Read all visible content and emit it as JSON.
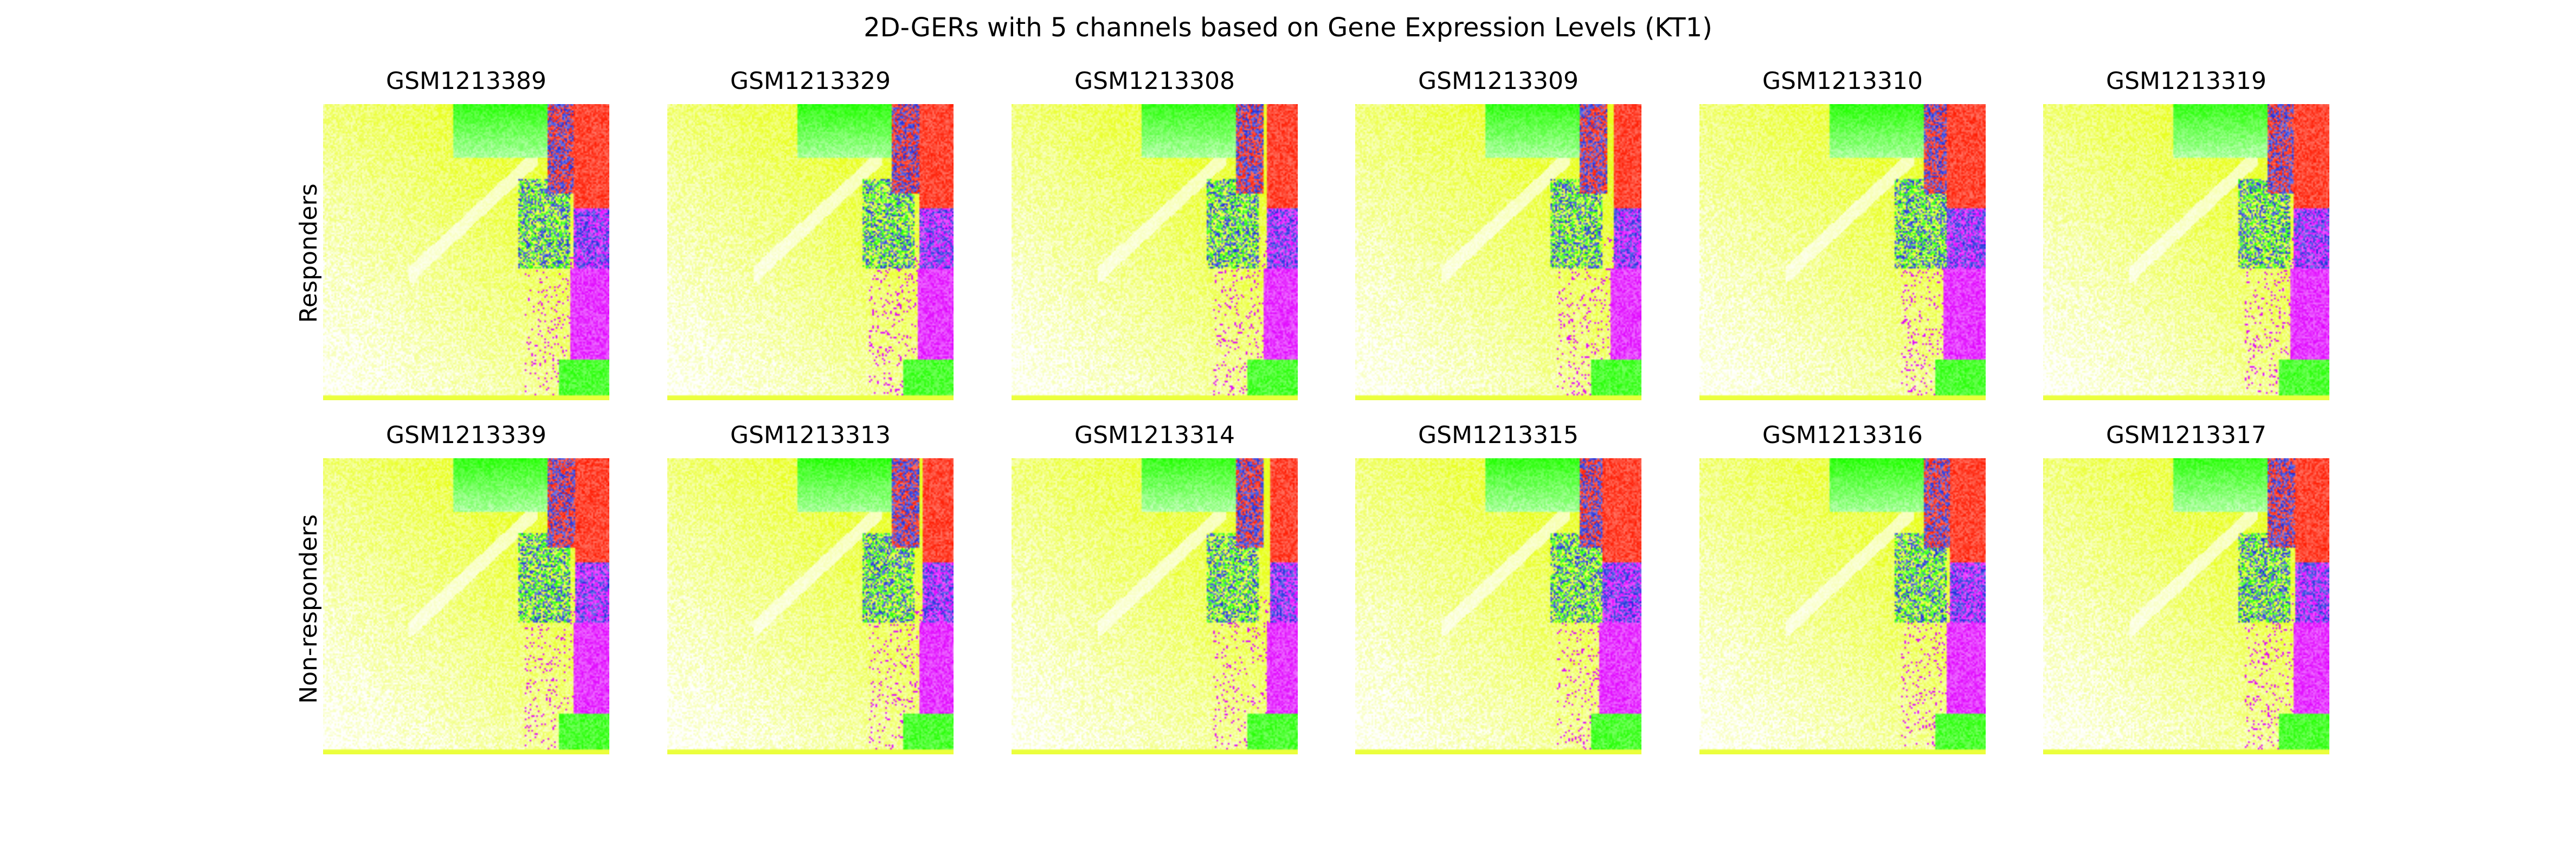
{
  "chart_data": {
    "type": "heatmap",
    "title": "2D-GERs with 5 channels based on Gene Expression Levels (KT1)",
    "rows": [
      {
        "label": "Responders",
        "samples": [
          "GSM1213389",
          "GSM1213329",
          "GSM1213308",
          "GSM1213309",
          "GSM1213310",
          "GSM1213319"
        ]
      },
      {
        "label": "Non-responders",
        "samples": [
          "GSM1213339",
          "GSM1213313",
          "GSM1213314",
          "GSM1213315",
          "GSM1213316",
          "GSM1213317"
        ]
      }
    ],
    "channel_colors": [
      "#ffffff",
      "#e8ff1a",
      "#22ff00",
      "#ff1a00",
      "#e000ff",
      "#1a2adc"
    ],
    "axes_visible": false
  }
}
